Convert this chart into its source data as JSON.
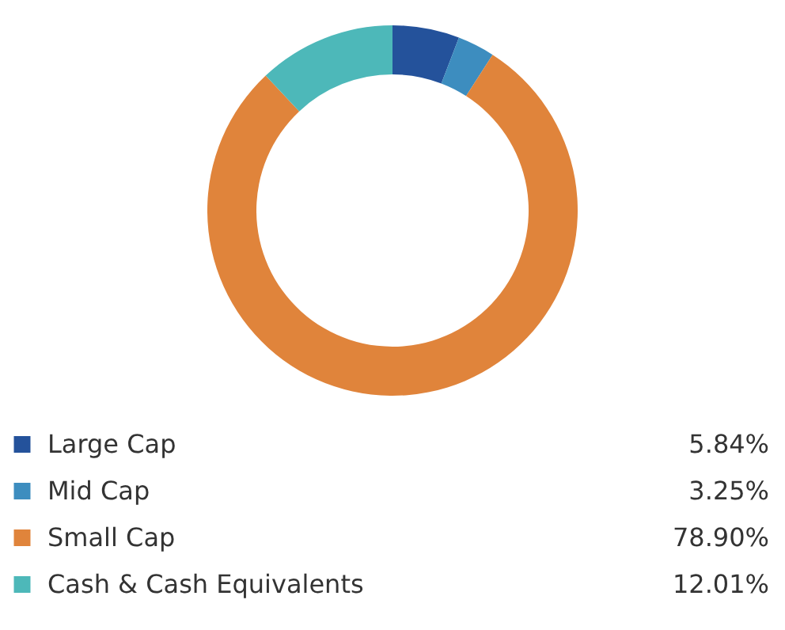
{
  "chart_data": {
    "type": "donut",
    "categories": [
      "Large Cap",
      "Mid Cap",
      "Small Cap",
      "Cash & Cash Equivalents"
    ],
    "values": [
      5.84,
      3.25,
      78.9,
      12.01
    ],
    "colors": [
      "#24529b",
      "#3d8dbf",
      "#e0843b",
      "#4db8b9"
    ],
    "value_labels": [
      "5.84%",
      "3.25%",
      "78.90%",
      "12.01%"
    ],
    "legend": "bottom"
  }
}
